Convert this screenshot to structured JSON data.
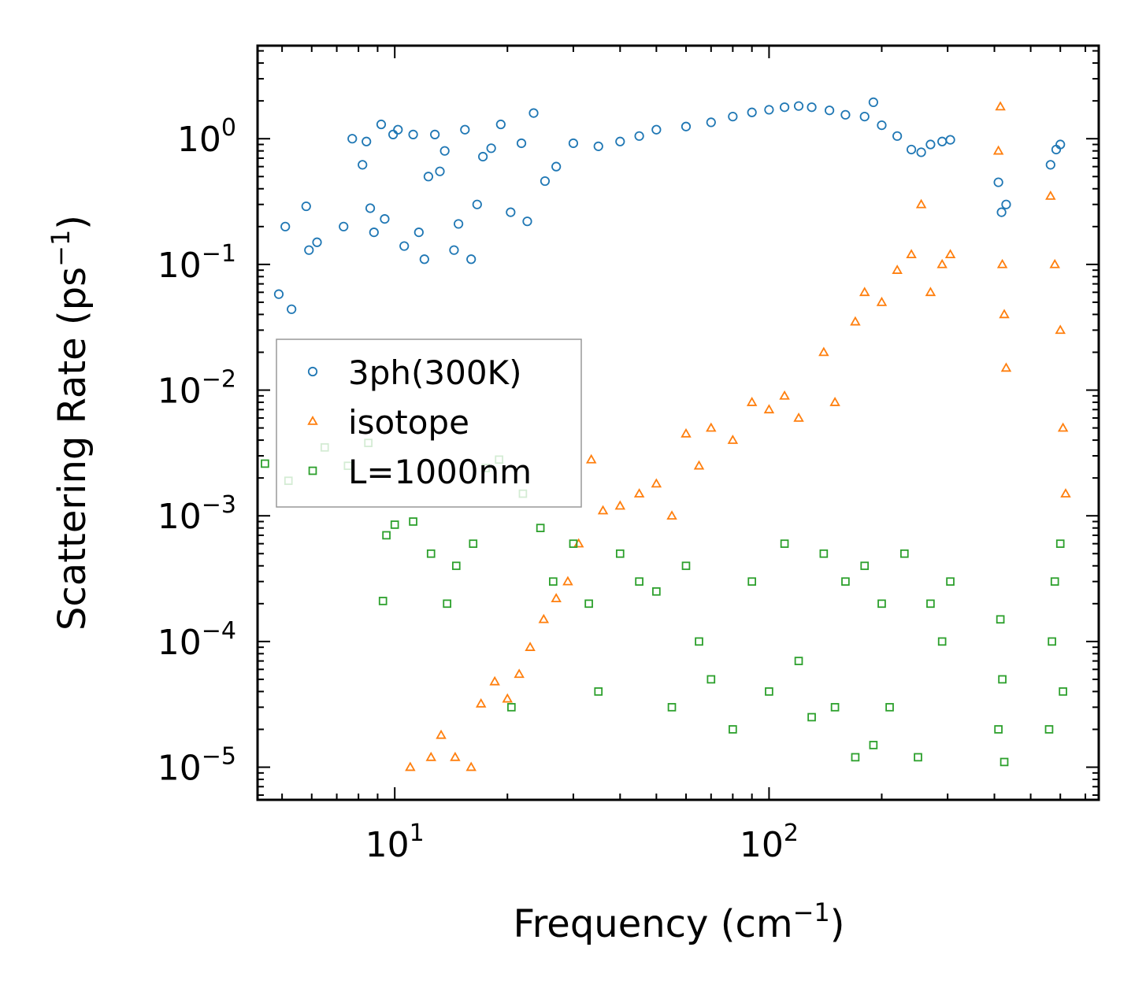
{
  "chart_data": {
    "type": "scatter",
    "xlabel_main": "Frequency (cm",
    "xlabel_exp": "−1",
    "xlabel_close": ")",
    "ylabel_main": "Scattering Rate (ps",
    "ylabel_exp": "−1",
    "ylabel_close": ")",
    "xscale": "log",
    "yscale": "log",
    "xlim": [
      4.3,
      760
    ],
    "ylim": [
      5.5e-06,
      5.5
    ],
    "xticks": [
      {
        "value": 10,
        "base": "10",
        "exp": "1"
      },
      {
        "value": 100,
        "base": "10",
        "exp": "2"
      }
    ],
    "yticks": [
      {
        "value": 1,
        "base": "10",
        "exp": "0"
      },
      {
        "value": 0.1,
        "base": "10",
        "exp": "−1"
      },
      {
        "value": 0.01,
        "base": "10",
        "exp": "−2"
      },
      {
        "value": 0.001,
        "base": "10",
        "exp": "−3"
      },
      {
        "value": 0.0001,
        "base": "10",
        "exp": "−4"
      },
      {
        "value": 1e-05,
        "base": "10",
        "exp": "−5"
      }
    ],
    "legend_position": "center-left",
    "series": [
      {
        "name": "3ph(300K)",
        "marker": "circle",
        "color": "#1f77b4",
        "points": [
          [
            4.9,
            0.058
          ],
          [
            5.1,
            0.2
          ],
          [
            5.3,
            0.044
          ],
          [
            5.8,
            0.29
          ],
          [
            5.9,
            0.13
          ],
          [
            6.2,
            0.15
          ],
          [
            7.3,
            0.2
          ],
          [
            7.7,
            1.0
          ],
          [
            8.2,
            0.62
          ],
          [
            8.4,
            0.95
          ],
          [
            8.6,
            0.28
          ],
          [
            8.8,
            0.18
          ],
          [
            9.2,
            1.3
          ],
          [
            9.4,
            0.23
          ],
          [
            9.9,
            1.08
          ],
          [
            10.2,
            1.18
          ],
          [
            10.6,
            0.14
          ],
          [
            11.2,
            1.08
          ],
          [
            11.6,
            0.18
          ],
          [
            12.0,
            0.11
          ],
          [
            12.3,
            0.5
          ],
          [
            12.8,
            1.08
          ],
          [
            13.2,
            0.55
          ],
          [
            13.6,
            0.8
          ],
          [
            14.4,
            0.13
          ],
          [
            14.8,
            0.21
          ],
          [
            15.4,
            1.18
          ],
          [
            16.0,
            0.11
          ],
          [
            16.6,
            0.3
          ],
          [
            17.2,
            0.72
          ],
          [
            18.1,
            0.84
          ],
          [
            19.2,
            1.3
          ],
          [
            20.4,
            0.26
          ],
          [
            21.8,
            0.92
          ],
          [
            22.6,
            0.22
          ],
          [
            23.5,
            1.6
          ],
          [
            25.2,
            0.46
          ],
          [
            27,
            0.6
          ],
          [
            30,
            0.92
          ],
          [
            35,
            0.87
          ],
          [
            40,
            0.95
          ],
          [
            45,
            1.05
          ],
          [
            50,
            1.18
          ],
          [
            60,
            1.25
          ],
          [
            70,
            1.35
          ],
          [
            80,
            1.5
          ],
          [
            90,
            1.62
          ],
          [
            100,
            1.7
          ],
          [
            110,
            1.78
          ],
          [
            120,
            1.82
          ],
          [
            130,
            1.78
          ],
          [
            145,
            1.68
          ],
          [
            160,
            1.55
          ],
          [
            180,
            1.5
          ],
          [
            190,
            1.95
          ],
          [
            200,
            1.28
          ],
          [
            220,
            1.05
          ],
          [
            240,
            0.82
          ],
          [
            255,
            0.78
          ],
          [
            270,
            0.9
          ],
          [
            290,
            0.95
          ],
          [
            305,
            0.98
          ],
          [
            410,
            0.45
          ],
          [
            418,
            0.26
          ],
          [
            430,
            0.3
          ],
          [
            565,
            0.62
          ],
          [
            585,
            0.82
          ],
          [
            600,
            0.9
          ]
        ]
      },
      {
        "name": "isotope",
        "marker": "triangle",
        "color": "#ff7f0e",
        "points": [
          [
            11.0,
            1e-05
          ],
          [
            12.5,
            1.2e-05
          ],
          [
            13.3,
            1.8e-05
          ],
          [
            14.5,
            1.2e-05
          ],
          [
            16.0,
            1e-05
          ],
          [
            17.0,
            3.2e-05
          ],
          [
            18.5,
            4.8e-05
          ],
          [
            20.0,
            3.5e-05
          ],
          [
            21.5,
            5.5e-05
          ],
          [
            23.0,
            9e-05
          ],
          [
            25.0,
            0.00015
          ],
          [
            27.0,
            0.00022
          ],
          [
            29.0,
            0.0003
          ],
          [
            31.0,
            0.0006
          ],
          [
            33.5,
            0.0028
          ],
          [
            36,
            0.0011
          ],
          [
            40,
            0.0012
          ],
          [
            45,
            0.0015
          ],
          [
            50,
            0.0018
          ],
          [
            55,
            0.001
          ],
          [
            60,
            0.0045
          ],
          [
            65,
            0.0025
          ],
          [
            70,
            0.005
          ],
          [
            80,
            0.004
          ],
          [
            90,
            0.008
          ],
          [
            100,
            0.007
          ],
          [
            110,
            0.009
          ],
          [
            120,
            0.006
          ],
          [
            140,
            0.02
          ],
          [
            150,
            0.008
          ],
          [
            170,
            0.035
          ],
          [
            180,
            0.06
          ],
          [
            200,
            0.05
          ],
          [
            220,
            0.09
          ],
          [
            240,
            0.12
          ],
          [
            255,
            0.3
          ],
          [
            270,
            0.06
          ],
          [
            290,
            0.1
          ],
          [
            305,
            0.12
          ],
          [
            410,
            0.8
          ],
          [
            415,
            1.8
          ],
          [
            420,
            0.1
          ],
          [
            425,
            0.04
          ],
          [
            430,
            0.015
          ],
          [
            565,
            0.35
          ],
          [
            580,
            0.1
          ],
          [
            600,
            0.03
          ],
          [
            610,
            0.005
          ],
          [
            620,
            0.0015
          ]
        ]
      },
      {
        "name": "L=1000nm",
        "marker": "square",
        "color": "#2ca02c",
        "points": [
          [
            4.5,
            0.0026
          ],
          [
            5.2,
            0.0019
          ],
          [
            6.5,
            0.0035
          ],
          [
            7.5,
            0.0025
          ],
          [
            8.5,
            0.0038
          ],
          [
            9.5,
            0.0007
          ],
          [
            10.0,
            0.00085
          ],
          [
            11.2,
            0.0009
          ],
          [
            12.5,
            0.0005
          ],
          [
            13.8,
            0.0002
          ],
          [
            9.3,
            0.00021
          ],
          [
            14.6,
            0.0004
          ],
          [
            16.2,
            0.0006
          ],
          [
            17.5,
            0.0024
          ],
          [
            19.0,
            0.0028
          ],
          [
            20.5,
            3e-05
          ],
          [
            22.0,
            0.0015
          ],
          [
            24.5,
            0.0008
          ],
          [
            26.5,
            0.0003
          ],
          [
            30,
            0.0006
          ],
          [
            33,
            0.0002
          ],
          [
            35,
            4e-05
          ],
          [
            40,
            0.0005
          ],
          [
            45,
            0.0003
          ],
          [
            50,
            0.00025
          ],
          [
            55,
            3e-05
          ],
          [
            60,
            0.0004
          ],
          [
            65,
            0.0001
          ],
          [
            70,
            5e-05
          ],
          [
            80,
            2e-05
          ],
          [
            90,
            0.0003
          ],
          [
            100,
            4e-05
          ],
          [
            110,
            0.0006
          ],
          [
            120,
            7e-05
          ],
          [
            130,
            2.5e-05
          ],
          [
            140,
            0.0005
          ],
          [
            150,
            3e-05
          ],
          [
            160,
            0.0003
          ],
          [
            170,
            1.2e-05
          ],
          [
            180,
            0.0004
          ],
          [
            190,
            1.5e-05
          ],
          [
            200,
            0.0002
          ],
          [
            210,
            3e-05
          ],
          [
            230,
            0.0005
          ],
          [
            250,
            1.2e-05
          ],
          [
            270,
            0.0002
          ],
          [
            290,
            0.0001
          ],
          [
            305,
            0.0003
          ],
          [
            410,
            2e-05
          ],
          [
            415,
            0.00015
          ],
          [
            420,
            5e-05
          ],
          [
            425,
            1.1e-05
          ],
          [
            560,
            2e-05
          ],
          [
            570,
            0.0001
          ],
          [
            580,
            0.0003
          ],
          [
            600,
            0.0006
          ],
          [
            610,
            4e-05
          ]
        ]
      }
    ]
  }
}
